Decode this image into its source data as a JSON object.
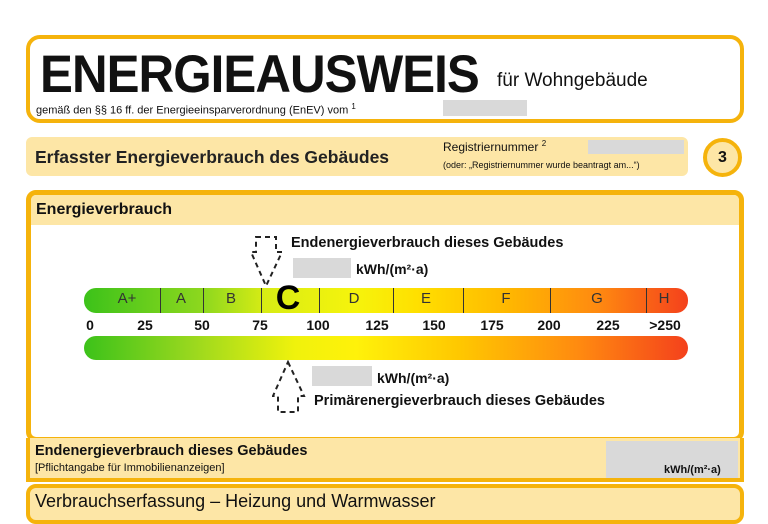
{
  "header": {
    "title": "ENERGIEAUSWEIS",
    "subtitle": "für Wohngebäude",
    "legal": "gemäß den §§ 16 ff. der Energieeinsparverordnung (EnEV) vom",
    "legal_footnote": "1"
  },
  "section_bar": {
    "title": "Erfasster Energieverbrauch des Gebäudes",
    "reg_label": "Registriernummer",
    "reg_footnote": "2",
    "reg_note": "(oder: „Registriernummer wurde beantragt am...“)",
    "page_number": "3"
  },
  "energy": {
    "title": "Energieverbrauch",
    "end_label": "Endenergieverbrauch dieses Gebäudes",
    "unit": "kWh/(m²·a)",
    "primary_label": "Primärenergieverbrauch dieses Gebäudes",
    "classes": [
      "A+",
      "A",
      "B",
      "C",
      "D",
      "E",
      "F",
      "G",
      "H"
    ],
    "highlighted_class": "C",
    "ticks": [
      "0",
      "25",
      "50",
      "75",
      "100",
      "125",
      "150",
      "175",
      "200",
      "225",
      ">250"
    ],
    "colors": {
      "green": "#3cc21a",
      "yellow": "#f6f40c",
      "orange": "#ff8a10",
      "red": "#f4411c",
      "border": "#f5b30c",
      "panel": "#fde6a6"
    }
  },
  "summary": {
    "label": "Endenergieverbrauch dieses Gebäudes",
    "note": "[Pflichtangabe für Immobilienanzeigen]",
    "unit": "kWh/(m²·a)"
  },
  "next_section": {
    "title": "Verbrauchserfassung – Heizung und Warmwasser"
  }
}
